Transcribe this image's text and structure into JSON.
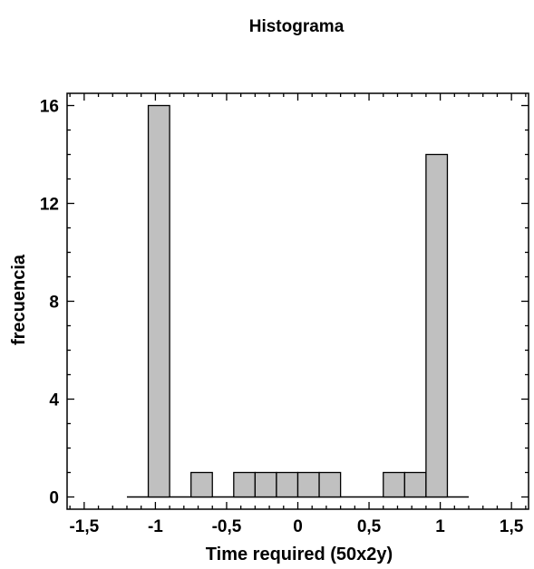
{
  "chart_data": {
    "type": "bar",
    "title": "Histograma",
    "xlabel": "Time required (50x2y)",
    "ylabel": "frecuencia",
    "xlim": [
      -1.62,
      1.62
    ],
    "ylim": [
      -0.5,
      16.5
    ],
    "x_ticks": [
      -1.5,
      -1,
      -0.5,
      0,
      0.5,
      1,
      1.5
    ],
    "x_tick_labels": [
      "-1,5",
      "-1",
      "-0,5",
      "0",
      "0,5",
      "1",
      "1,5"
    ],
    "y_ticks": [
      0,
      4,
      8,
      12,
      16
    ],
    "y_tick_labels": [
      "0",
      "4",
      "8",
      "12",
      "16"
    ],
    "bin_edges": [
      -1.2,
      -1.05,
      -0.9,
      -0.75,
      -0.6,
      -0.45,
      -0.3,
      -0.15,
      0,
      0.15,
      0.3,
      0.45,
      0.6,
      0.75,
      0.9,
      1.05,
      1.2
    ],
    "values": [
      0,
      16,
      0,
      1,
      0,
      1,
      1,
      1,
      1,
      1,
      0,
      0,
      1,
      1,
      14,
      0
    ],
    "bar_color": "#c0c0c0",
    "grid": false
  }
}
